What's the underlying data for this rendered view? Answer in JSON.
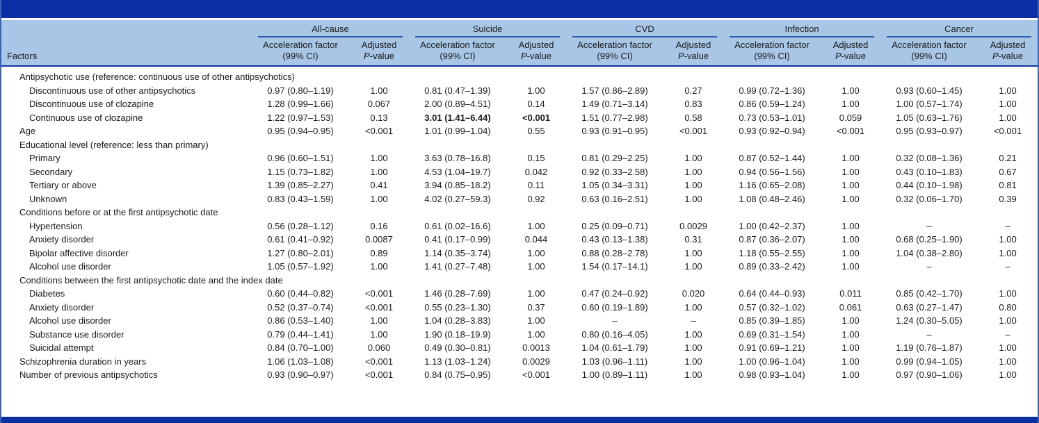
{
  "table": {
    "factors_header": "Factors",
    "groups": [
      {
        "name": "All-cause"
      },
      {
        "name": "Suicide"
      },
      {
        "name": "CVD"
      },
      {
        "name": "Infection"
      },
      {
        "name": "Cancer"
      }
    ],
    "sub_accel_line1": "Acceleration factor",
    "sub_accel_line2": "(99% CI)",
    "sub_p_line1": "Adjusted",
    "sub_p_italic": "P",
    "sub_p_rest": "-value",
    "rows": [
      {
        "type": "section",
        "indent": 0,
        "label": "Antipsychotic use (reference: continuous use of other antipsychotics)",
        "cells": []
      },
      {
        "type": "data",
        "indent": 1,
        "label": "Discontinuous use of other antipsychotics",
        "cells": [
          "0.97 (0.80–1.19)",
          "1.00",
          "0.81 (0.47–1.39)",
          "1.00",
          "1.57 (0.86–2.89)",
          "0.27",
          "0.99 (0.72–1.36)",
          "1.00",
          "0.93 (0.60–1.45)",
          "1.00"
        ]
      },
      {
        "type": "data",
        "indent": 1,
        "label": "Discontinuous use of clozapine",
        "cells": [
          "1.28 (0.99–1.66)",
          "0.067",
          "2.00 (0.89–4.51)",
          "0.14",
          "1.49 (0.71–3.14)",
          "0.83",
          "0.86 (0.59–1.24)",
          "1.00",
          "1.00 (0.57–1.74)",
          "1.00"
        ]
      },
      {
        "type": "data",
        "indent": 1,
        "label": "Continuous use of clozapine",
        "bold_cells": [
          2,
          3
        ],
        "cells": [
          "1.22 (0.97–1.53)",
          "0.13",
          "3.01 (1.41–6.44)",
          "<0.001",
          "1.51 (0.77–2.98)",
          "0.58",
          "0.73 (0.53–1.01)",
          "0.059",
          "1.05 (0.63–1.76)",
          "1.00"
        ]
      },
      {
        "type": "data",
        "indent": 0,
        "label": "Age",
        "cells": [
          "0.95 (0.94–0.95)",
          "<0.001",
          "1.01 (0.99–1.04)",
          "0.55",
          "0.93 (0.91–0.95)",
          "<0.001",
          "0.93 (0.92–0.94)",
          "<0.001",
          "0.95 (0.93–0.97)",
          "<0.001"
        ]
      },
      {
        "type": "section",
        "indent": 0,
        "label": "Educational level (reference: less than primary)",
        "cells": []
      },
      {
        "type": "data",
        "indent": 1,
        "label": "Primary",
        "cells": [
          "0.96 (0.60–1.51)",
          "1.00",
          "3.63 (0.78–16.8)",
          "0.15",
          "0.81 (0.29–2.25)",
          "1.00",
          "0.87 (0.52–1.44)",
          "1.00",
          "0.32 (0.08–1.36)",
          "0.21"
        ]
      },
      {
        "type": "data",
        "indent": 1,
        "label": "Secondary",
        "cells": [
          "1.15 (0.73–1.82)",
          "1.00",
          "4.53 (1.04–19.7)",
          "0.042",
          "0.92 (0.33–2.58)",
          "1.00",
          "0.94 (0.56–1.56)",
          "1.00",
          "0.43 (0.10–1.83)",
          "0.67"
        ]
      },
      {
        "type": "data",
        "indent": 1,
        "label": "Tertiary or above",
        "cells": [
          "1.39 (0.85–2.27)",
          "0.41",
          "3.94 (0.85–18.2)",
          "0.11",
          "1.05 (0.34–3.31)",
          "1.00",
          "1.16 (0.65–2.08)",
          "1.00",
          "0.44 (0.10–1.98)",
          "0.81"
        ]
      },
      {
        "type": "data",
        "indent": 1,
        "label": "Unknown",
        "cells": [
          "0.83 (0.43–1.59)",
          "1.00",
          "4.02 (0.27–59.3)",
          "0.92",
          "0.63 (0.16–2.51)",
          "1.00",
          "1.08 (0.48–2.46)",
          "1.00",
          "0.32 (0.06–1.70)",
          "0.39"
        ]
      },
      {
        "type": "section",
        "indent": 0,
        "label": "Conditions before or at the first antipsychotic date",
        "cells": []
      },
      {
        "type": "data",
        "indent": 1,
        "label": "Hypertension",
        "cells": [
          "0.56 (0.28–1.12)",
          "0.16",
          "0.61 (0.02–16.6)",
          "1.00",
          "0.25 (0.09–0.71)",
          "0.0029",
          "1.00 (0.42–2.37)",
          "1.00",
          "–",
          "–"
        ]
      },
      {
        "type": "data",
        "indent": 1,
        "label": "Anxiety disorder",
        "cells": [
          "0.61 (0.41–0.92)",
          "0.0087",
          "0.41 (0.17–0.99)",
          "0.044",
          "0.43 (0.13–1.38)",
          "0.31",
          "0.87 (0.36–2.07)",
          "1.00",
          "0.68 (0.25–1.90)",
          "1.00"
        ]
      },
      {
        "type": "data",
        "indent": 1,
        "label": "Bipolar affective disorder",
        "cells": [
          "1.27 (0.80–2.01)",
          "0.89",
          "1.14 (0.35–3.74)",
          "1.00",
          "0.88 (0.28–2.78)",
          "1.00",
          "1.18 (0.55–2.55)",
          "1.00",
          "1.04 (0.38–2.80)",
          "1.00"
        ]
      },
      {
        "type": "data",
        "indent": 1,
        "label": "Alcohol use disorder",
        "cells": [
          "1.05 (0.57–1.92)",
          "1.00",
          "1.41 (0.27–7.48)",
          "1.00",
          "1.54 (0.17–14.1)",
          "1.00",
          "0.89 (0.33–2.42)",
          "1.00",
          "–",
          "–"
        ]
      },
      {
        "type": "section",
        "indent": 0,
        "label": "Conditions between the first antipsychotic date and the index date",
        "cells": []
      },
      {
        "type": "data",
        "indent": 1,
        "label": "Diabetes",
        "cells": [
          "0.60 (0.44–0.82)",
          "<0.001",
          "1.46 (0.28–7.69)",
          "1.00",
          "0.47 (0.24–0.92)",
          "0.020",
          "0.64 (0.44–0.93)",
          "0.011",
          "0.85 (0.42–1.70)",
          "1.00"
        ]
      },
      {
        "type": "data",
        "indent": 1,
        "label": "Anxiety disorder",
        "cells": [
          "0.52 (0.37–0.74)",
          "<0.001",
          "0.55 (0.23–1.30)",
          "0.37",
          "0.60 (0.19–1.89)",
          "1.00",
          "0.57 (0.32–1.02)",
          "0.061",
          "0.63 (0.27–1.47)",
          "0.80"
        ]
      },
      {
        "type": "data",
        "indent": 1,
        "label": "Alcohol use disorder",
        "cells": [
          "0.86 (0.53–1.40)",
          "1.00",
          "1.04 (0.28–3.83)",
          "1.00",
          "–",
          "–",
          "0.85 (0.39–1.85)",
          "1.00",
          "1.24 (0.30–5.05)",
          "1.00"
        ]
      },
      {
        "type": "data",
        "indent": 1,
        "label": "Substance use disorder",
        "cells": [
          "0.79 (0.44–1.41)",
          "1.00",
          "1.90 (0.18–19.9)",
          "1.00",
          "0.80 (0.16–4.05)",
          "1.00",
          "0.69 (0.31–1.54)",
          "1.00",
          "–",
          "–"
        ]
      },
      {
        "type": "data",
        "indent": 1,
        "label": "Suicidal attempt",
        "cells": [
          "0.84 (0.70–1.00)",
          "0.060",
          "0.49 (0.30–0.81)",
          "0.0013",
          "1.04 (0.61–1.79)",
          "1.00",
          "0.91 (0.69–1.21)",
          "1.00",
          "1.19 (0.76–1.87)",
          "1.00"
        ]
      },
      {
        "type": "data",
        "indent": 0,
        "label": "Schizophrenia duration in years",
        "cells": [
          "1.06 (1.03–1.08)",
          "<0.001",
          "1.13 (1.03–1.24)",
          "0.0029",
          "1.03 (0.96–1.11)",
          "1.00",
          "1.00 (0.96–1.04)",
          "1.00",
          "0.99 (0.94–1.05)",
          "1.00"
        ]
      },
      {
        "type": "data",
        "indent": 0,
        "label": "Number of previous antipsychotics",
        "cells": [
          "0.93 (0.90–0.97)",
          "<0.001",
          "0.84 (0.75–0.95)",
          "<0.001",
          "1.00 (0.89–1.11)",
          "1.00",
          "0.98 (0.93–1.04)",
          "1.00",
          "0.97 (0.90–1.06)",
          "1.00"
        ]
      }
    ]
  },
  "colors": {
    "accent_navy": "#0a2ea3",
    "header_bg": "#a8c6e6",
    "group_underline": "#2f5fae",
    "header_border": "#1233a0",
    "side_border": "#3c62b5",
    "text": "#1a1a1a"
  }
}
